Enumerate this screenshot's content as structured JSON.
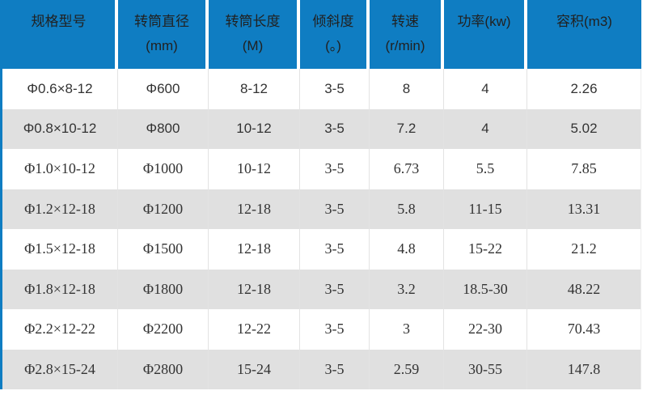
{
  "chart_data": {
    "type": "table",
    "columns": [
      {
        "title": "规格型号",
        "unit": ""
      },
      {
        "title": "转筒直径",
        "unit": "(mm)"
      },
      {
        "title": "转筒长度",
        "unit": "(M)"
      },
      {
        "title": "倾斜度",
        "unit": "(。)"
      },
      {
        "title": "转速",
        "unit": "(r/min)"
      },
      {
        "title": "功率(kw)",
        "unit": ""
      },
      {
        "title": "容积(m3)",
        "unit": ""
      }
    ],
    "rows": [
      [
        "Φ0.6×8-12",
        "Φ600",
        "8-12",
        "3-5",
        "8",
        "4",
        "2.26"
      ],
      [
        "Φ0.8×10-12",
        "Φ800",
        "10-12",
        "3-5",
        "7.2",
        "4",
        "5.02"
      ],
      [
        "Φ1.0×10-12",
        "Φ1000",
        "10-12",
        "3-5",
        "6.73",
        "5.5",
        "7.85"
      ],
      [
        "Φ1.2×12-18",
        "Φ1200",
        "12-18",
        "3-5",
        "5.8",
        "11-15",
        "13.31"
      ],
      [
        "Φ1.5×12-18",
        "Φ1500",
        "12-18",
        "3-5",
        "4.8",
        "15-22",
        "21.2"
      ],
      [
        "Φ1.8×12-18",
        "Φ1800",
        "12-18",
        "3-5",
        "3.2",
        "18.5-30",
        "48.22"
      ],
      [
        "Φ2.2×12-22",
        "Φ2200",
        "12-22",
        "3-5",
        "3",
        "22-30",
        "70.43"
      ],
      [
        "Φ2.8×15-24",
        "Φ2800",
        "15-24",
        "3-5",
        "2.59",
        "30-55",
        "147.8"
      ]
    ]
  },
  "style": {
    "header_bg": "#0f7dc2",
    "header_text": "#212121",
    "stripe_bg": "#e0e0e0",
    "row_bg": "#ffffff",
    "body_text": "#333333",
    "divider": "#e3e3e3",
    "accent_border": "#0f7dc2"
  }
}
